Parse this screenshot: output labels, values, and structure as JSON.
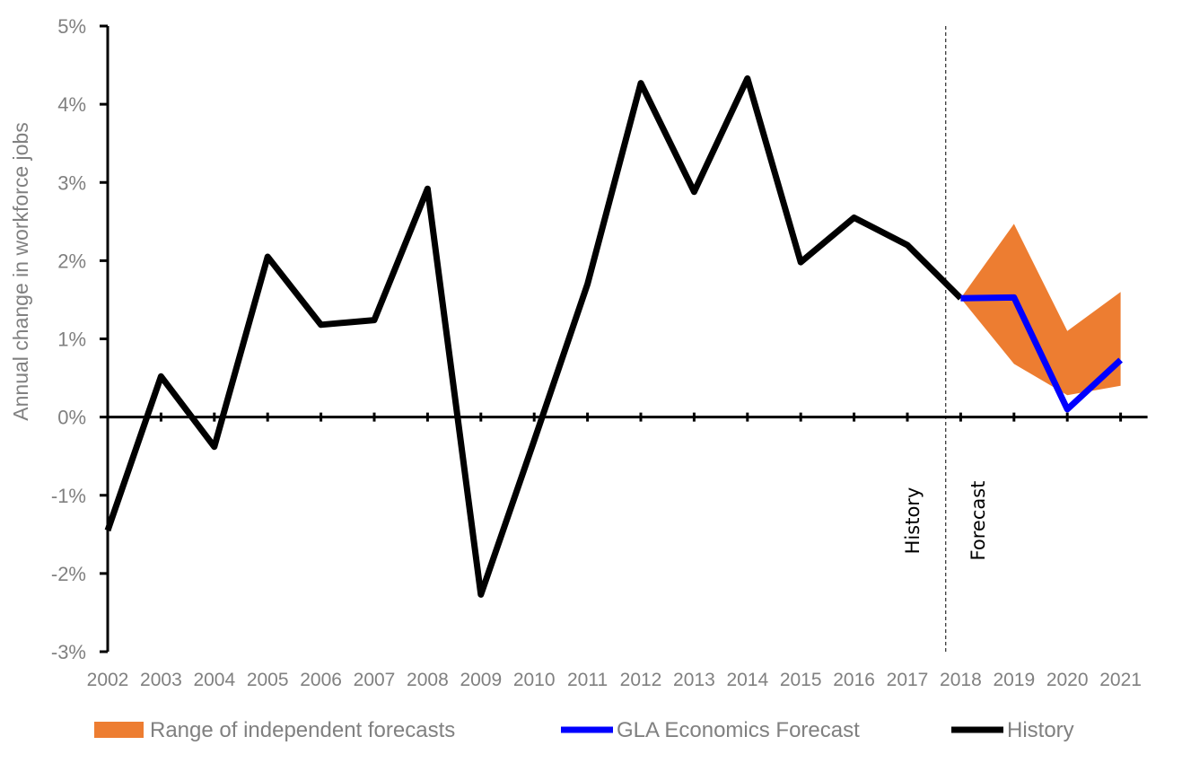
{
  "chart_data": {
    "type": "line",
    "xlabel": "",
    "ylabel": "Annual change in workforce jobs",
    "ylim": [
      -3,
      5
    ],
    "yticks": [
      {
        "value": 5,
        "label": "5%"
      },
      {
        "value": 4,
        "label": "4%"
      },
      {
        "value": 3,
        "label": "3%"
      },
      {
        "value": 2,
        "label": "2%"
      },
      {
        "value": 1,
        "label": "1%"
      },
      {
        "value": 0,
        "label": "0%"
      },
      {
        "value": -1,
        "label": "-1%"
      },
      {
        "value": -2,
        "label": "-2%"
      },
      {
        "value": -3,
        "label": "-3%"
      }
    ],
    "categories": [
      "2002",
      "2003",
      "2004",
      "2005",
      "2006",
      "2007",
      "2008",
      "2009",
      "2010",
      "2011",
      "2012",
      "2013",
      "2014",
      "2015",
      "2016",
      "2017",
      "2018",
      "2019",
      "2020",
      "2021"
    ],
    "series": [
      {
        "name": "History",
        "color": "#000000",
        "x": [
          "2002",
          "2003",
          "2004",
          "2005",
          "2006",
          "2007",
          "2008",
          "2009",
          "2010",
          "2011",
          "2012",
          "2013",
          "2014",
          "2015",
          "2016",
          "2017",
          "2018"
        ],
        "values": [
          -1.45,
          0.52,
          -0.38,
          2.05,
          1.18,
          1.24,
          2.92,
          -2.27,
          -0.3,
          1.7,
          4.27,
          2.88,
          4.33,
          1.98,
          2.55,
          2.2,
          1.52
        ]
      },
      {
        "name": "GLA Economics Forecast",
        "color": "#0000ff",
        "x": [
          "2018",
          "2019",
          "2020",
          "2021"
        ],
        "values": [
          1.52,
          1.53,
          0.1,
          0.73
        ]
      }
    ],
    "band": {
      "name": "Range of independent forecasts",
      "color": "#ed7d31",
      "x": [
        "2018",
        "2019",
        "2020",
        "2021"
      ],
      "upper": [
        1.52,
        2.47,
        1.1,
        1.6
      ],
      "lower": [
        1.52,
        0.68,
        0.28,
        0.4
      ]
    },
    "divider": {
      "after_category": "2017",
      "left_label": "History",
      "right_label": "Forecast"
    },
    "legend": {
      "position": "bottom",
      "items": [
        {
          "label": "Range of independent forecasts",
          "kind": "band",
          "color": "#ed7d31"
        },
        {
          "label": "GLA Economics Forecast",
          "kind": "line",
          "color": "#0000ff"
        },
        {
          "label": "History",
          "kind": "line",
          "color": "#000000"
        }
      ]
    },
    "grid": false
  }
}
